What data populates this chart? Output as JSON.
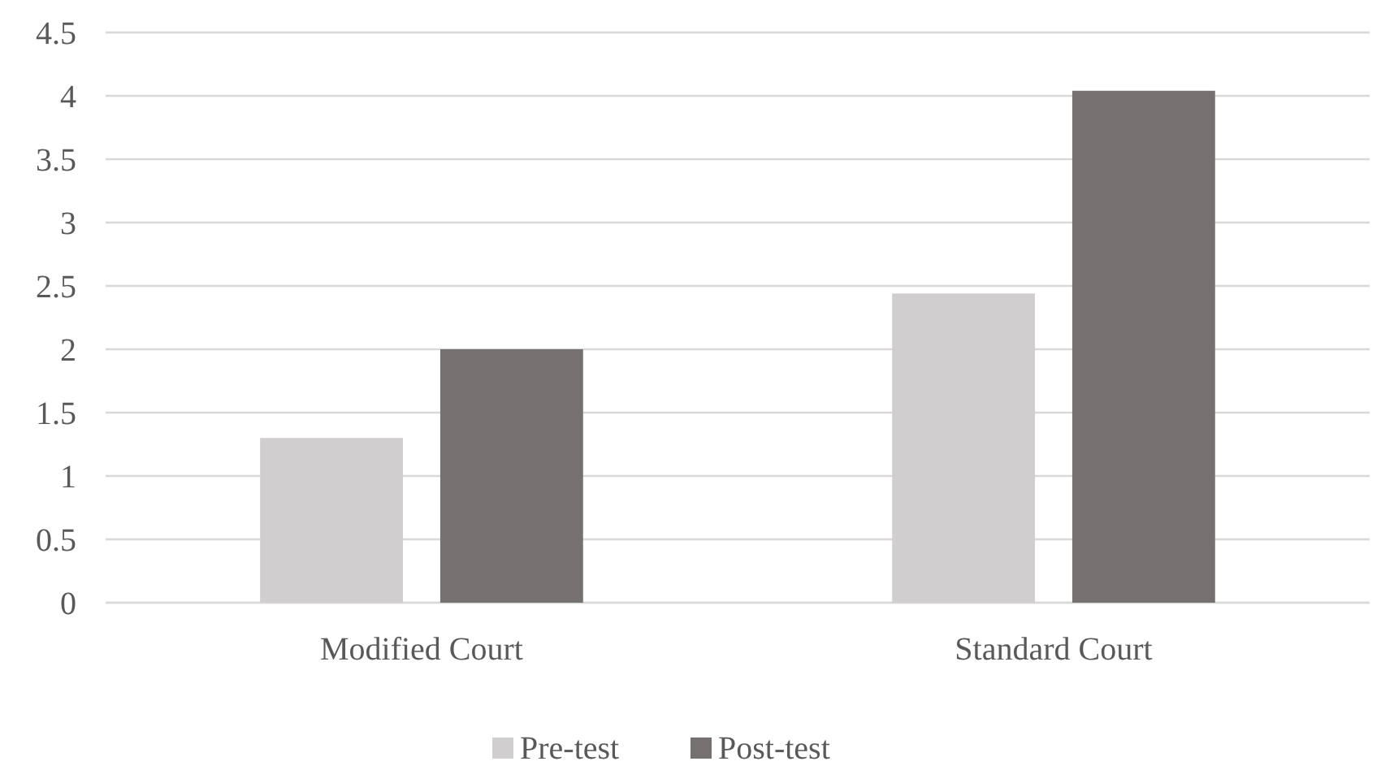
{
  "chart_data": {
    "type": "bar",
    "categories": [
      "Modified Court",
      "Standard Court"
    ],
    "series": [
      {
        "name": "Pre-test",
        "color": "#d0cece",
        "values": [
          1.3,
          2.44
        ]
      },
      {
        "name": "Post-test",
        "color": "#767171",
        "values": [
          2.0,
          4.04
        ]
      }
    ],
    "ylim": [
      0,
      4.5
    ],
    "yticks": [
      0,
      0.5,
      1,
      1.5,
      2,
      2.5,
      3,
      3.5,
      4,
      4.5
    ],
    "grid": "y",
    "legend": "bottom"
  }
}
